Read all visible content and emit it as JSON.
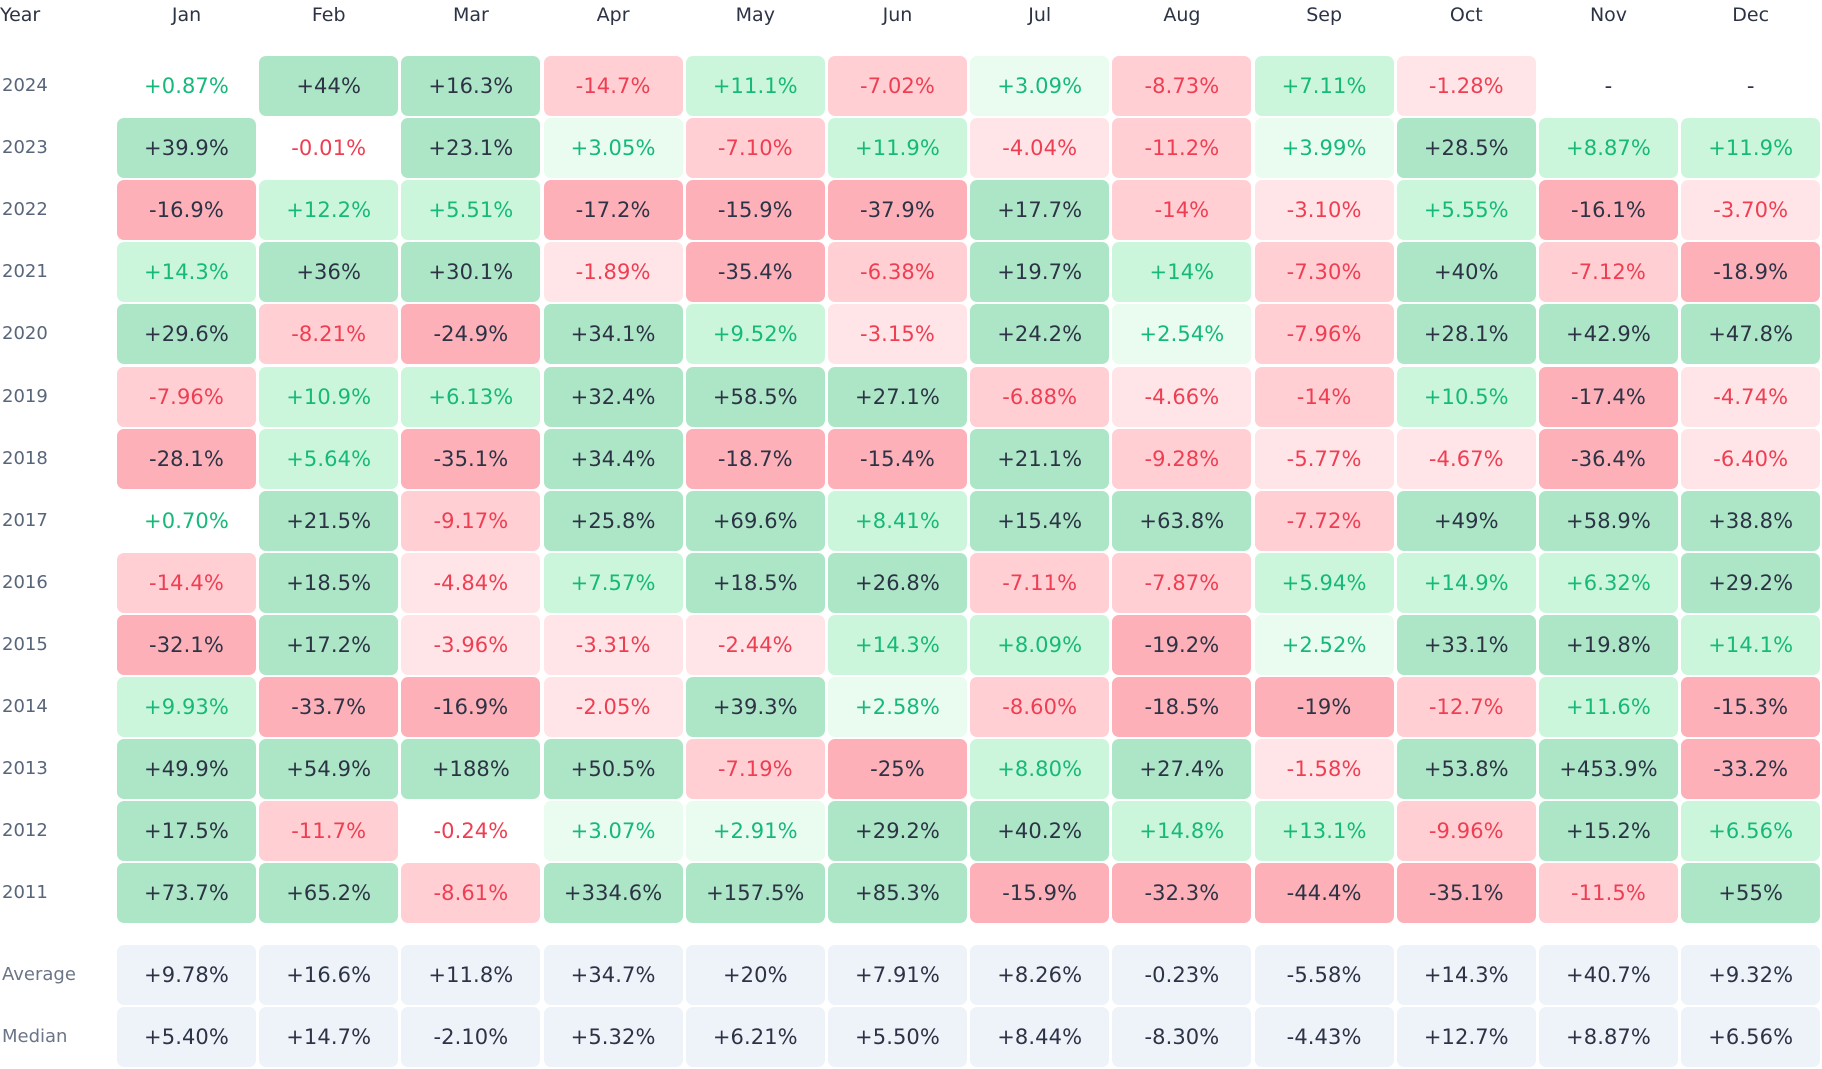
{
  "table": {
    "corner_label": "Year",
    "months": [
      "Jan",
      "Feb",
      "Mar",
      "Apr",
      "May",
      "Jun",
      "Jul",
      "Aug",
      "Sep",
      "Oct",
      "Nov",
      "Dec"
    ],
    "rows": [
      {
        "year": "2024",
        "cells": [
          {
            "text": "+0.87%",
            "tone": "pos0"
          },
          {
            "text": "+44%",
            "tone": "pos3"
          },
          {
            "text": "+16.3%",
            "tone": "pos3"
          },
          {
            "text": "-14.7%",
            "tone": "neg2"
          },
          {
            "text": "+11.1%",
            "tone": "pos2"
          },
          {
            "text": "-7.02%",
            "tone": "neg2"
          },
          {
            "text": "+3.09%",
            "tone": "pos1"
          },
          {
            "text": "-8.73%",
            "tone": "neg2"
          },
          {
            "text": "+7.11%",
            "tone": "pos2"
          },
          {
            "text": "-1.28%",
            "tone": "neg1"
          },
          {
            "text": "-",
            "tone": "empty"
          },
          {
            "text": "-",
            "tone": "empty"
          }
        ]
      },
      {
        "year": "2023",
        "cells": [
          {
            "text": "+39.9%",
            "tone": "pos3"
          },
          {
            "text": "-0.01%",
            "tone": "neg0"
          },
          {
            "text": "+23.1%",
            "tone": "pos3"
          },
          {
            "text": "+3.05%",
            "tone": "pos1"
          },
          {
            "text": "-7.10%",
            "tone": "neg2"
          },
          {
            "text": "+11.9%",
            "tone": "pos2"
          },
          {
            "text": "-4.04%",
            "tone": "neg1"
          },
          {
            "text": "-11.2%",
            "tone": "neg2"
          },
          {
            "text": "+3.99%",
            "tone": "pos1"
          },
          {
            "text": "+28.5%",
            "tone": "pos3"
          },
          {
            "text": "+8.87%",
            "tone": "pos2"
          },
          {
            "text": "+11.9%",
            "tone": "pos2"
          }
        ]
      },
      {
        "year": "2022",
        "cells": [
          {
            "text": "-16.9%",
            "tone": "neg3"
          },
          {
            "text": "+12.2%",
            "tone": "pos2"
          },
          {
            "text": "+5.51%",
            "tone": "pos2"
          },
          {
            "text": "-17.2%",
            "tone": "neg3"
          },
          {
            "text": "-15.9%",
            "tone": "neg3"
          },
          {
            "text": "-37.9%",
            "tone": "neg3"
          },
          {
            "text": "+17.7%",
            "tone": "pos3"
          },
          {
            "text": "-14%",
            "tone": "neg2"
          },
          {
            "text": "-3.10%",
            "tone": "neg1"
          },
          {
            "text": "+5.55%",
            "tone": "pos2"
          },
          {
            "text": "-16.1%",
            "tone": "neg3"
          },
          {
            "text": "-3.70%",
            "tone": "neg1"
          }
        ]
      },
      {
        "year": "2021",
        "cells": [
          {
            "text": "+14.3%",
            "tone": "pos2"
          },
          {
            "text": "+36%",
            "tone": "pos3"
          },
          {
            "text": "+30.1%",
            "tone": "pos3"
          },
          {
            "text": "-1.89%",
            "tone": "neg1"
          },
          {
            "text": "-35.4%",
            "tone": "neg3"
          },
          {
            "text": "-6.38%",
            "tone": "neg2"
          },
          {
            "text": "+19.7%",
            "tone": "pos3"
          },
          {
            "text": "+14%",
            "tone": "pos2"
          },
          {
            "text": "-7.30%",
            "tone": "neg2"
          },
          {
            "text": "+40%",
            "tone": "pos3"
          },
          {
            "text": "-7.12%",
            "tone": "neg2"
          },
          {
            "text": "-18.9%",
            "tone": "neg3"
          }
        ]
      },
      {
        "year": "2020",
        "cells": [
          {
            "text": "+29.6%",
            "tone": "pos3"
          },
          {
            "text": "-8.21%",
            "tone": "neg2"
          },
          {
            "text": "-24.9%",
            "tone": "neg3"
          },
          {
            "text": "+34.1%",
            "tone": "pos3"
          },
          {
            "text": "+9.52%",
            "tone": "pos2"
          },
          {
            "text": "-3.15%",
            "tone": "neg1"
          },
          {
            "text": "+24.2%",
            "tone": "pos3"
          },
          {
            "text": "+2.54%",
            "tone": "pos1"
          },
          {
            "text": "-7.96%",
            "tone": "neg2"
          },
          {
            "text": "+28.1%",
            "tone": "pos3"
          },
          {
            "text": "+42.9%",
            "tone": "pos3"
          },
          {
            "text": "+47.8%",
            "tone": "pos3"
          }
        ]
      },
      {
        "year": "2019",
        "cells": [
          {
            "text": "-7.96%",
            "tone": "neg2"
          },
          {
            "text": "+10.9%",
            "tone": "pos2"
          },
          {
            "text": "+6.13%",
            "tone": "pos2"
          },
          {
            "text": "+32.4%",
            "tone": "pos3"
          },
          {
            "text": "+58.5%",
            "tone": "pos3"
          },
          {
            "text": "+27.1%",
            "tone": "pos3"
          },
          {
            "text": "-6.88%",
            "tone": "neg2"
          },
          {
            "text": "-4.66%",
            "tone": "neg1"
          },
          {
            "text": "-14%",
            "tone": "neg2"
          },
          {
            "text": "+10.5%",
            "tone": "pos2"
          },
          {
            "text": "-17.4%",
            "tone": "neg3"
          },
          {
            "text": "-4.74%",
            "tone": "neg1"
          }
        ]
      },
      {
        "year": "2018",
        "cells": [
          {
            "text": "-28.1%",
            "tone": "neg3"
          },
          {
            "text": "+5.64%",
            "tone": "pos2"
          },
          {
            "text": "-35.1%",
            "tone": "neg3"
          },
          {
            "text": "+34.4%",
            "tone": "pos3"
          },
          {
            "text": "-18.7%",
            "tone": "neg3"
          },
          {
            "text": "-15.4%",
            "tone": "neg3"
          },
          {
            "text": "+21.1%",
            "tone": "pos3"
          },
          {
            "text": "-9.28%",
            "tone": "neg2"
          },
          {
            "text": "-5.77%",
            "tone": "neg1"
          },
          {
            "text": "-4.67%",
            "tone": "neg1"
          },
          {
            "text": "-36.4%",
            "tone": "neg3"
          },
          {
            "text": "-6.40%",
            "tone": "neg1"
          }
        ]
      },
      {
        "year": "2017",
        "cells": [
          {
            "text": "+0.70%",
            "tone": "pos0"
          },
          {
            "text": "+21.5%",
            "tone": "pos3"
          },
          {
            "text": "-9.17%",
            "tone": "neg2"
          },
          {
            "text": "+25.8%",
            "tone": "pos3"
          },
          {
            "text": "+69.6%",
            "tone": "pos3"
          },
          {
            "text": "+8.41%",
            "tone": "pos2"
          },
          {
            "text": "+15.4%",
            "tone": "pos3"
          },
          {
            "text": "+63.8%",
            "tone": "pos3"
          },
          {
            "text": "-7.72%",
            "tone": "neg2"
          },
          {
            "text": "+49%",
            "tone": "pos3"
          },
          {
            "text": "+58.9%",
            "tone": "pos3"
          },
          {
            "text": "+38.8%",
            "tone": "pos3"
          }
        ]
      },
      {
        "year": "2016",
        "cells": [
          {
            "text": "-14.4%",
            "tone": "neg2"
          },
          {
            "text": "+18.5%",
            "tone": "pos3"
          },
          {
            "text": "-4.84%",
            "tone": "neg1"
          },
          {
            "text": "+7.57%",
            "tone": "pos2"
          },
          {
            "text": "+18.5%",
            "tone": "pos3"
          },
          {
            "text": "+26.8%",
            "tone": "pos3"
          },
          {
            "text": "-7.11%",
            "tone": "neg2"
          },
          {
            "text": "-7.87%",
            "tone": "neg2"
          },
          {
            "text": "+5.94%",
            "tone": "pos2"
          },
          {
            "text": "+14.9%",
            "tone": "pos2"
          },
          {
            "text": "+6.32%",
            "tone": "pos2"
          },
          {
            "text": "+29.2%",
            "tone": "pos3"
          }
        ]
      },
      {
        "year": "2015",
        "cells": [
          {
            "text": "-32.1%",
            "tone": "neg3"
          },
          {
            "text": "+17.2%",
            "tone": "pos3"
          },
          {
            "text": "-3.96%",
            "tone": "neg1"
          },
          {
            "text": "-3.31%",
            "tone": "neg1"
          },
          {
            "text": "-2.44%",
            "tone": "neg1"
          },
          {
            "text": "+14.3%",
            "tone": "pos2"
          },
          {
            "text": "+8.09%",
            "tone": "pos2"
          },
          {
            "text": "-19.2%",
            "tone": "neg3"
          },
          {
            "text": "+2.52%",
            "tone": "pos1"
          },
          {
            "text": "+33.1%",
            "tone": "pos3"
          },
          {
            "text": "+19.8%",
            "tone": "pos3"
          },
          {
            "text": "+14.1%",
            "tone": "pos2"
          }
        ]
      },
      {
        "year": "2014",
        "cells": [
          {
            "text": "+9.93%",
            "tone": "pos2"
          },
          {
            "text": "-33.7%",
            "tone": "neg3"
          },
          {
            "text": "-16.9%",
            "tone": "neg3"
          },
          {
            "text": "-2.05%",
            "tone": "neg1"
          },
          {
            "text": "+39.3%",
            "tone": "pos3"
          },
          {
            "text": "+2.58%",
            "tone": "pos1"
          },
          {
            "text": "-8.60%",
            "tone": "neg2"
          },
          {
            "text": "-18.5%",
            "tone": "neg3"
          },
          {
            "text": "-19%",
            "tone": "neg3"
          },
          {
            "text": "-12.7%",
            "tone": "neg2"
          },
          {
            "text": "+11.6%",
            "tone": "pos2"
          },
          {
            "text": "-15.3%",
            "tone": "neg3"
          }
        ]
      },
      {
        "year": "2013",
        "cells": [
          {
            "text": "+49.9%",
            "tone": "pos3"
          },
          {
            "text": "+54.9%",
            "tone": "pos3"
          },
          {
            "text": "+188%",
            "tone": "pos3"
          },
          {
            "text": "+50.5%",
            "tone": "pos3"
          },
          {
            "text": "-7.19%",
            "tone": "neg2"
          },
          {
            "text": "-25%",
            "tone": "neg3"
          },
          {
            "text": "+8.80%",
            "tone": "pos2"
          },
          {
            "text": "+27.4%",
            "tone": "pos3"
          },
          {
            "text": "-1.58%",
            "tone": "neg1"
          },
          {
            "text": "+53.8%",
            "tone": "pos3"
          },
          {
            "text": "+453.9%",
            "tone": "pos3"
          },
          {
            "text": "-33.2%",
            "tone": "neg3"
          }
        ]
      },
      {
        "year": "2012",
        "cells": [
          {
            "text": "+17.5%",
            "tone": "pos3"
          },
          {
            "text": "-11.7%",
            "tone": "neg2"
          },
          {
            "text": "-0.24%",
            "tone": "neg0"
          },
          {
            "text": "+3.07%",
            "tone": "pos1"
          },
          {
            "text": "+2.91%",
            "tone": "pos1"
          },
          {
            "text": "+29.2%",
            "tone": "pos3"
          },
          {
            "text": "+40.2%",
            "tone": "pos3"
          },
          {
            "text": "+14.8%",
            "tone": "pos2"
          },
          {
            "text": "+13.1%",
            "tone": "pos2"
          },
          {
            "text": "-9.96%",
            "tone": "neg2"
          },
          {
            "text": "+15.2%",
            "tone": "pos3"
          },
          {
            "text": "+6.56%",
            "tone": "pos2"
          }
        ]
      },
      {
        "year": "2011",
        "cells": [
          {
            "text": "+73.7%",
            "tone": "pos3"
          },
          {
            "text": "+65.2%",
            "tone": "pos3"
          },
          {
            "text": "-8.61%",
            "tone": "neg2"
          },
          {
            "text": "+334.6%",
            "tone": "pos3"
          },
          {
            "text": "+157.5%",
            "tone": "pos3"
          },
          {
            "text": "+85.3%",
            "tone": "pos3"
          },
          {
            "text": "-15.9%",
            "tone": "neg3"
          },
          {
            "text": "-32.3%",
            "tone": "neg3"
          },
          {
            "text": "-44.4%",
            "tone": "neg3"
          },
          {
            "text": "-35.1%",
            "tone": "neg3"
          },
          {
            "text": "-11.5%",
            "tone": "neg2"
          },
          {
            "text": "+55%",
            "tone": "pos3"
          }
        ]
      }
    ],
    "summary": [
      {
        "label": "Average",
        "cells": [
          "+9.78%",
          "+16.6%",
          "+11.8%",
          "+34.7%",
          "+20%",
          "+7.91%",
          "+8.26%",
          "-0.23%",
          "-5.58%",
          "+14.3%",
          "+40.7%",
          "+9.32%"
        ]
      },
      {
        "label": "Median",
        "cells": [
          "+5.40%",
          "+14.7%",
          "-2.10%",
          "+5.32%",
          "+6.21%",
          "+5.50%",
          "+8.44%",
          "-8.30%",
          "-4.43%",
          "+12.7%",
          "+8.87%",
          "+6.56%"
        ]
      }
    ]
  },
  "colors": {
    "pos0": {
      "bg": "#ffffff",
      "fg": "#16b979"
    },
    "pos1": {
      "bg": "#e9fcef",
      "fg": "#16b979"
    },
    "pos2": {
      "bg": "#cbf6dc",
      "fg": "#16b979"
    },
    "pos3": {
      "bg": "#ace6c6",
      "fg": "#2c3345"
    },
    "neg0": {
      "bg": "#ffffff",
      "fg": "#ef3e52"
    },
    "neg1": {
      "bg": "#ffe5e8",
      "fg": "#ef3e52"
    },
    "neg2": {
      "bg": "#ffcfd4",
      "fg": "#ef3e52"
    },
    "neg3": {
      "bg": "#fdb0b8",
      "fg": "#2c3345"
    },
    "empty": {
      "bg": "#ffffff",
      "fg": "#2c3345"
    },
    "summary": {
      "bg": "#eef2f9",
      "fg": "#2c3345"
    }
  }
}
